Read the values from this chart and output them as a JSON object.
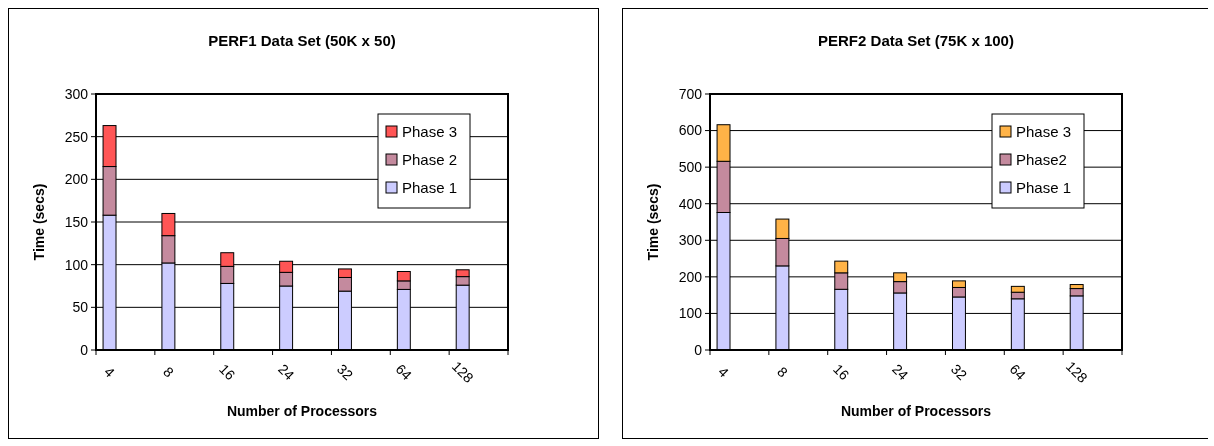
{
  "chart_data": [
    {
      "type": "bar",
      "title": "PERF1 Data Set (50K x 50)",
      "xlabel": "Number of Processors",
      "ylabel": "Time (secs)",
      "categories": [
        "4",
        "8",
        "16",
        "24",
        "32",
        "64",
        "128"
      ],
      "stacked": true,
      "series": [
        {
          "name": "Phase 1",
          "color": "#ccccff",
          "values": [
            158,
            102,
            78,
            75,
            69,
            71,
            76
          ]
        },
        {
          "name": "Phase 2",
          "color": "#c48a9e",
          "values": [
            57,
            32,
            20,
            16,
            16,
            10,
            10
          ]
        },
        {
          "name": "Phase 3",
          "color": "#ff5555",
          "values": [
            48,
            26,
            16,
            13,
            10,
            11,
            8
          ]
        }
      ],
      "ylim": [
        0,
        300
      ],
      "yticks": [
        0,
        50,
        100,
        150,
        200,
        250,
        300
      ],
      "grid": "y",
      "legend": "top right"
    },
    {
      "type": "bar",
      "title": "PERF2 Data Set (75K x 100)",
      "xlabel": "Number of Processors",
      "ylabel": "Time (secs)",
      "categories": [
        "4",
        "8",
        "16",
        "24",
        "32",
        "64",
        "128"
      ],
      "stacked": true,
      "series": [
        {
          "name": "Phase 1",
          "color": "#ccccff",
          "values": [
            376,
            230,
            166,
            156,
            145,
            140,
            148
          ]
        },
        {
          "name": "Phase2",
          "color": "#c48a9e",
          "values": [
            140,
            75,
            45,
            31,
            26,
            18,
            20
          ]
        },
        {
          "name": "Phase 3",
          "color": "#ffb347",
          "values": [
            100,
            53,
            32,
            24,
            18,
            16,
            11
          ]
        }
      ],
      "ylim": [
        0,
        700
      ],
      "yticks": [
        0,
        100,
        200,
        300,
        400,
        500,
        600,
        700
      ],
      "grid": "y",
      "legend": "top right"
    }
  ]
}
